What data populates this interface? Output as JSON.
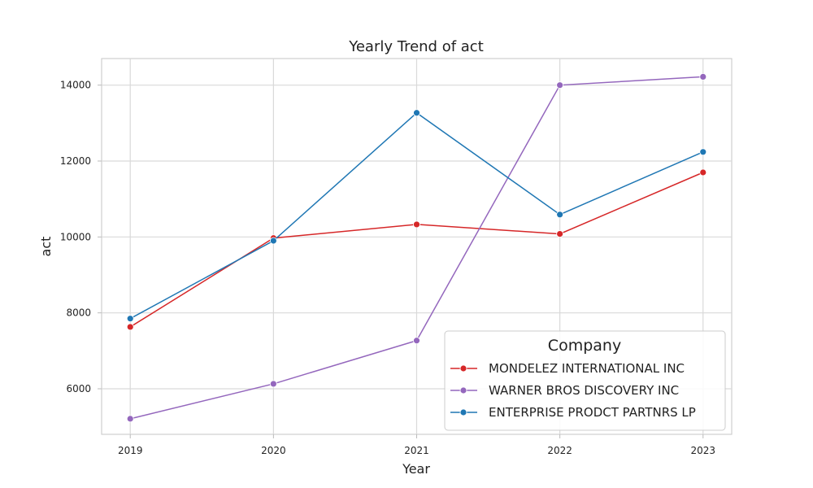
{
  "chart_data": {
    "type": "line",
    "title": "Yearly Trend of act",
    "xlabel": "Year",
    "ylabel": "act",
    "x": [
      2019,
      2020,
      2021,
      2022,
      2023
    ],
    "x_tick_labels": [
      "2019",
      "2020",
      "2021",
      "2022",
      "2023"
    ],
    "y_ticks": [
      6000,
      8000,
      10000,
      12000,
      14000
    ],
    "y_tick_labels": [
      "6000",
      "8000",
      "10000",
      "12000",
      "14000"
    ],
    "ylim": [
      4800,
      14700
    ],
    "xlim": [
      2018.8,
      2023.2
    ],
    "grid": true,
    "legend": {
      "title": "Company",
      "placement": "lower-right"
    },
    "series": [
      {
        "name": "MONDELEZ INTERNATIONAL INC",
        "color": "#d62728",
        "values": [
          7630,
          9970,
          10330,
          10080,
          11700
        ]
      },
      {
        "name": "WARNER BROS DISCOVERY INC",
        "color": "#9467bd",
        "values": [
          5210,
          6130,
          7270,
          14000,
          14220
        ]
      },
      {
        "name": "ENTERPRISE PRODCT PARTNRS LP",
        "color": "#1f77b4",
        "values": [
          7850,
          9900,
          13270,
          10590,
          12240
        ]
      }
    ]
  }
}
